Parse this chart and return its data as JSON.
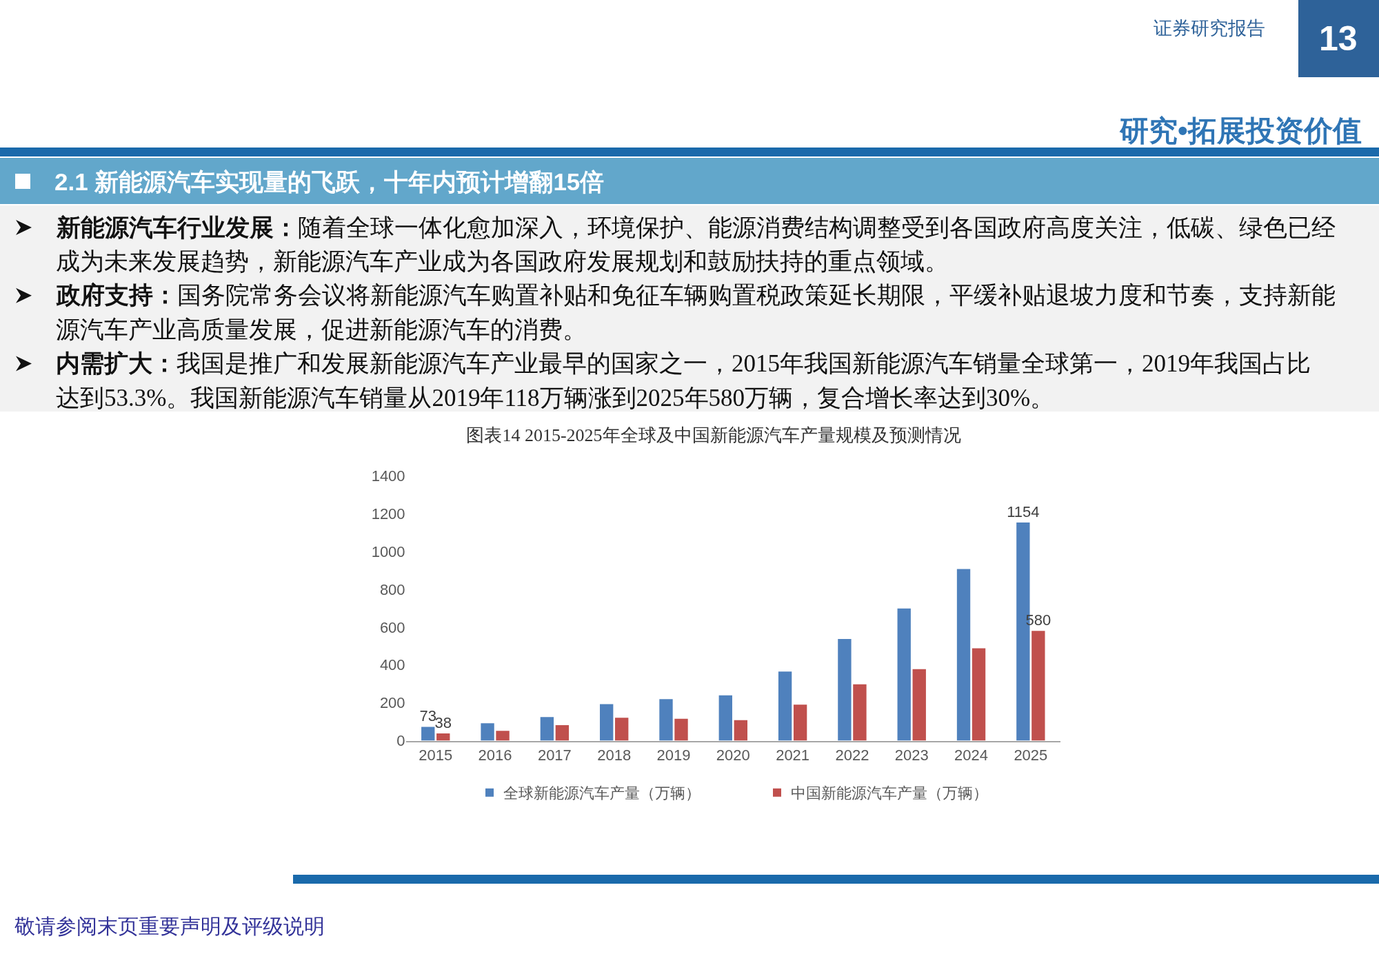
{
  "chart_data": {
    "type": "bar",
    "title": "图表14 2015-2025年全球及中国新能源汽车产量规模及预测情况",
    "categories": [
      "2015",
      "2016",
      "2017",
      "2018",
      "2019",
      "2020",
      "2021",
      "2022",
      "2023",
      "2024",
      "2025"
    ],
    "series": [
      {
        "name": "全球新能源汽车产量（万辆）",
        "color": "#4f81bd",
        "values": [
          73,
          92,
          125,
          193,
          220,
          240,
          365,
          538,
          699,
          908,
          1154
        ],
        "value_labels": [
          "73",
          null,
          null,
          null,
          null,
          null,
          null,
          null,
          null,
          null,
          "1154"
        ]
      },
      {
        "name": "中国新能源汽车产量（万辆）",
        "color": "#c0504d",
        "values": [
          38,
          52,
          82,
          121,
          116,
          108,
          190,
          298,
          378,
          488,
          580
        ],
        "value_labels": [
          "38",
          null,
          null,
          null,
          null,
          null,
          null,
          null,
          null,
          null,
          "580"
        ]
      }
    ],
    "ylim": [
      0,
      1400
    ],
    "yticks": [
      0,
      200,
      400,
      600,
      800,
      1000,
      1200,
      1400
    ],
    "legend": "bottom",
    "annotations": [
      "证券研究报告",
      "13",
      "研究•拓展投资价值",
      "2.1 新能源汽车实现量的飞跃，十年内预计增翻15倍",
      "新能源汽车行业发展：",
      "随着全球一体化愈加深入，环境保护、能源消费结构调整受到各国政府高度关注，低碳、绿色已经成为未来发展趋势，新能源汽车产业成为各国政府发展规划和鼓励扶持的重点领域。",
      "政府支持：",
      "国务院常务会议将新能源汽车购置补贴和免征车辆购置税政策延长期限，平缓补贴退坡力度和节奏，支持新能源汽车产业高质量发展，促进新能源汽车的消费。",
      "内需扩大：",
      "我国是推广和发展新能源汽车产业最早的国家之一，2015年我国新能源汽车销量全球第一，2019年我国占比达到53.3%。我国新能源汽车销量从2019年118万辆涨到2025年580万辆，复合增长率达到30%。",
      "敬请参阅末页重要声明及评级说明"
    ]
  }
}
